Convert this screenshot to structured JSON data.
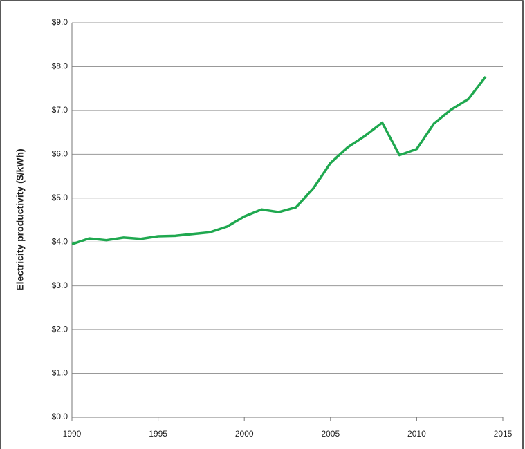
{
  "chart_data": {
    "type": "line",
    "y_label": "Electricity productivity ($/kWh)",
    "x": [
      1990,
      1991,
      1992,
      1993,
      1994,
      1995,
      1996,
      1997,
      1998,
      1999,
      2000,
      2001,
      2002,
      2003,
      2004,
      2005,
      2006,
      2007,
      2008,
      2009,
      2010,
      2011,
      2012,
      2013,
      2014
    ],
    "series": [
      {
        "name": "Electricity productivity",
        "color": "#1fa84f",
        "values": [
          3.95,
          4.08,
          4.04,
          4.1,
          4.07,
          4.13,
          4.14,
          4.18,
          4.22,
          4.35,
          4.58,
          4.74,
          4.68,
          4.79,
          5.22,
          5.8,
          6.16,
          6.42,
          6.72,
          5.98,
          6.12,
          6.7,
          7.02,
          7.26,
          7.77
        ]
      }
    ],
    "xlim": [
      1990,
      2015
    ],
    "xticks": [
      1990,
      1995,
      2000,
      2005,
      2010,
      2015
    ],
    "ylim": [
      0,
      9
    ],
    "yticks": [
      {
        "value": 0,
        "label": "$0.0"
      },
      {
        "value": 1,
        "label": "$1.0"
      },
      {
        "value": 2,
        "label": "$2.0"
      },
      {
        "value": 3,
        "label": "$3.0"
      },
      {
        "value": 4,
        "label": "$4.0"
      },
      {
        "value": 5,
        "label": "$5.0"
      },
      {
        "value": 6,
        "label": "$6.0"
      },
      {
        "value": 7,
        "label": "$7.0"
      },
      {
        "value": 8,
        "label": "$8.0"
      },
      {
        "value": 9,
        "label": "$9.0"
      }
    ],
    "grid": true
  }
}
